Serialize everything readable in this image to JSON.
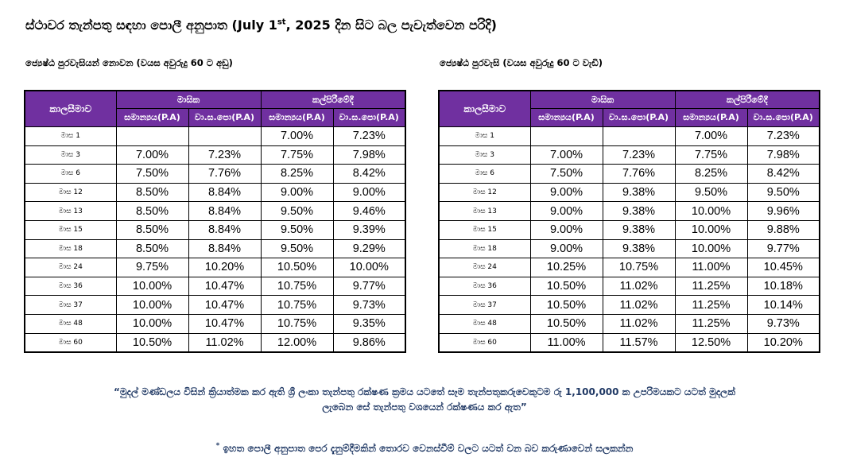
{
  "title": {
    "part1": "ස්ථාවර තැන්පතු සඳහා පොලී අනුපාත (July 1",
    "sup": "st",
    "part2": ", 2025 දින සිට බල පැවැත්වෙන පරිදි)"
  },
  "left_section": {
    "heading": "ජ්‍යෙෂ්ඨ පුරවැසියන් නොවන (වයස අවුරුදු 60 ට අඩු)",
    "table": {
      "period_header": "කාලසීමාව",
      "groups": [
        "මාසික",
        "කල්පිරීමේදී"
      ],
      "subheaders": [
        "සමාන්‍යය(P.A)",
        "වා.ස.පො(P.A)",
        "සමාන්‍යය(P.A)",
        "වා.ස.පො(P.A)"
      ],
      "rows": [
        {
          "period": "මාස 1",
          "v": [
            "",
            "",
            "7.00%",
            "7.23%"
          ]
        },
        {
          "period": "මාස 3",
          "v": [
            "7.00%",
            "7.23%",
            "7.75%",
            "7.98%"
          ]
        },
        {
          "period": "මාස 6",
          "v": [
            "7.50%",
            "7.76%",
            "8.25%",
            "8.42%"
          ]
        },
        {
          "period": "මාස 12",
          "v": [
            "8.50%",
            "8.84%",
            "9.00%",
            "9.00%"
          ]
        },
        {
          "period": "මාස 13",
          "v": [
            "8.50%",
            "8.84%",
            "9.50%",
            "9.46%"
          ]
        },
        {
          "period": "මාස 15",
          "v": [
            "8.50%",
            "8.84%",
            "9.50%",
            "9.39%"
          ]
        },
        {
          "period": "මාස 18",
          "v": [
            "8.50%",
            "8.84%",
            "9.50%",
            "9.29%"
          ]
        },
        {
          "period": "මාස 24",
          "v": [
            "9.75%",
            "10.20%",
            "10.50%",
            "10.00%"
          ]
        },
        {
          "period": "මාස 36",
          "v": [
            "10.00%",
            "10.47%",
            "10.75%",
            "9.77%"
          ]
        },
        {
          "period": "මාස 37",
          "v": [
            "10.00%",
            "10.47%",
            "10.75%",
            "9.73%"
          ]
        },
        {
          "period": "මාස 48",
          "v": [
            "10.00%",
            "10.47%",
            "10.75%",
            "9.35%"
          ]
        },
        {
          "period": "මාස 60",
          "v": [
            "10.50%",
            "11.02%",
            "12.00%",
            "9.86%"
          ]
        }
      ]
    }
  },
  "right_section": {
    "heading": "ජ්‍යෙෂ්ඨ පුරවැසි (වයස අවුරුදු 60 ට වැඩි)",
    "table": {
      "period_header": "කාලසීමාව",
      "groups": [
        "මාසික",
        "කල්පිරීමේදී"
      ],
      "subheaders": [
        "සමාන්‍යය(P.A)",
        "වා.ස.පො(P.A)",
        "සමාන්‍යය(P.A)",
        "වා.ස.පො(P.A)"
      ],
      "rows": [
        {
          "period": "මාස 1",
          "v": [
            "",
            "",
            "7.00%",
            "7.23%"
          ]
        },
        {
          "period": "මාස 3",
          "v": [
            "7.00%",
            "7.23%",
            "7.75%",
            "7.98%"
          ]
        },
        {
          "period": "මාස 6",
          "v": [
            "7.50%",
            "7.76%",
            "8.25%",
            "8.42%"
          ]
        },
        {
          "period": "මාස 12",
          "v": [
            "9.00%",
            "9.38%",
            "9.50%",
            "9.50%"
          ]
        },
        {
          "period": "මාස 13",
          "v": [
            "9.00%",
            "9.38%",
            "10.00%",
            "9.96%"
          ]
        },
        {
          "period": "මාස 15",
          "v": [
            "9.00%",
            "9.38%",
            "10.00%",
            "9.88%"
          ]
        },
        {
          "period": "මාස 18",
          "v": [
            "9.00%",
            "9.38%",
            "10.00%",
            "9.77%"
          ]
        },
        {
          "period": "මාස 24",
          "v": [
            "10.25%",
            "10.75%",
            "11.00%",
            "10.45%"
          ]
        },
        {
          "period": "මාස 36",
          "v": [
            "10.50%",
            "11.02%",
            "11.25%",
            "10.18%"
          ]
        },
        {
          "period": "මාස 37",
          "v": [
            "10.50%",
            "11.02%",
            "11.25%",
            "10.14%"
          ]
        },
        {
          "period": "මාස 48",
          "v": [
            "10.50%",
            "11.02%",
            "11.25%",
            "9.73%"
          ]
        },
        {
          "period": "මාස 60",
          "v": [
            "11.00%",
            "11.57%",
            "12.50%",
            "10.20%"
          ]
        }
      ]
    }
  },
  "footnote_deposit": {
    "line1": "“මුදල් මණ්ඩලය විසින් ක්‍රියාත්මක කර ඇති ශ්‍රී ලංකා තැන්පතු රක්ෂණ ක්‍රමය යටතේ සෑම තැන්පතුකරුවෙකුටම රු 1,100,000 ක උපරිමයකට යටත් මුදලක්",
    "line2": "ලැබෙන සේ තැන්පතු වශයෙන් රක්ෂණය කර ඇත”"
  },
  "footnote_notice": {
    "marker": "*",
    "text": " ඉහත පොලී අනුපාත පෙර දැනුම්දීමකින් තොරව වෙනස්වීම් වලට යටත් වන බව කරුණාවෙන් සලකන්න"
  },
  "colors": {
    "header_bg": "#7030a0",
    "header_text": "#ffffff",
    "footnote_text": "#1f3864"
  }
}
